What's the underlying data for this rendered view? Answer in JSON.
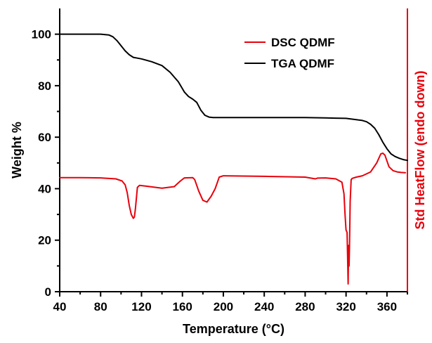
{
  "chart_data": {
    "type": "line",
    "xlabel": "Temperature (°C)",
    "ylabel": "Weight %",
    "y2label": "Std HeatFlow (endo down)",
    "xlim": [
      40,
      380
    ],
    "ylim": [
      0,
      110
    ],
    "x_ticks": [
      40,
      80,
      120,
      160,
      200,
      240,
      280,
      320,
      360
    ],
    "y_ticks": [
      0,
      20,
      40,
      60,
      80,
      100
    ],
    "grid": false,
    "legend_position": "top-right",
    "colors": {
      "axis_left": "#000000",
      "axis_right": "#e8000b"
    },
    "series": [
      {
        "name": "DSC QDMF",
        "color": "#e8000b",
        "x": [
          40,
          60,
          80,
          95,
          101,
          104,
          106,
          108,
          110,
          112,
          113,
          114,
          116,
          118,
          124,
          140,
          152,
          158,
          162,
          170,
          172,
          176,
          180,
          184,
          188,
          192,
          196,
          200,
          240,
          280,
          290,
          292,
          300,
          310,
          316,
          318,
          319,
          320,
          321,
          321.5,
          322,
          322.5,
          323,
          323.5,
          324,
          325,
          326,
          330,
          336,
          344,
          350,
          354,
          356,
          358,
          362,
          366,
          370,
          374,
          378
        ],
        "y": [
          44.3,
          44.3,
          44.2,
          43.8,
          43.0,
          41.5,
          38.5,
          33.5,
          30.0,
          28.5,
          29.0,
          32.0,
          40.5,
          41.3,
          41.0,
          40.2,
          40.8,
          43.0,
          44.2,
          44.3,
          43.5,
          39.0,
          35.5,
          34.8,
          37.0,
          40.0,
          44.5,
          45.0,
          44.8,
          44.5,
          43.8,
          44.1,
          44.2,
          43.8,
          42.5,
          38.0,
          30.0,
          24.0,
          23.0,
          14.0,
          3.0,
          18.0,
          10.0,
          20.0,
          35.0,
          43.5,
          44.0,
          44.5,
          45.0,
          46.5,
          50.0,
          53.5,
          53.8,
          53.0,
          48.5,
          47.0,
          46.5,
          46.3,
          46.2
        ]
      },
      {
        "name": "TGA QDMF",
        "color": "#000000",
        "x": [
          40,
          60,
          80,
          88,
          92,
          96,
          100,
          104,
          108,
          112,
          116,
          120,
          130,
          140,
          148,
          156,
          162,
          166,
          170,
          174,
          178,
          182,
          186,
          190,
          200,
          240,
          280,
          300,
          310,
          320,
          330,
          336,
          340,
          344,
          348,
          352,
          356,
          360,
          364,
          368,
          372,
          376,
          380
        ],
        "y": [
          100.0,
          100.0,
          100.0,
          99.7,
          99.0,
          97.5,
          95.5,
          93.5,
          92.0,
          91.0,
          90.7,
          90.4,
          89.3,
          87.8,
          85.2,
          81.5,
          77.5,
          75.8,
          74.8,
          73.5,
          70.5,
          68.5,
          67.8,
          67.6,
          67.6,
          67.6,
          67.6,
          67.5,
          67.4,
          67.3,
          66.8,
          66.5,
          66.0,
          65.0,
          63.5,
          61.0,
          58.0,
          55.5,
          53.5,
          52.5,
          51.8,
          51.3,
          51.0
        ]
      }
    ]
  }
}
